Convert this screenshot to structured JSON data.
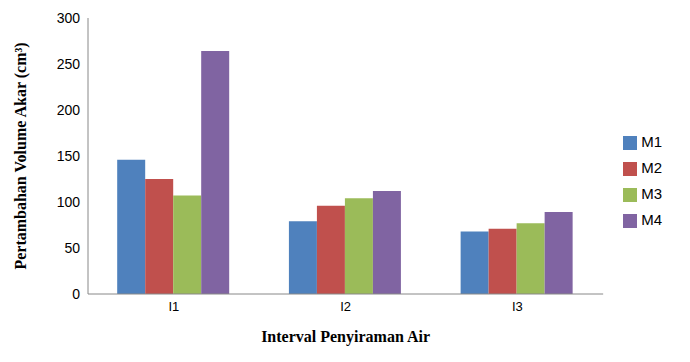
{
  "chart_data": {
    "type": "bar",
    "x_label": "Interval Penyiraman Air",
    "y_label": "Pertambahan Volume Akar (cm³)",
    "categories": [
      "I1",
      "I2",
      "I3"
    ],
    "series": [
      {
        "name": "M1",
        "color": "#4f81bd",
        "values": [
          146,
          79,
          68
        ]
      },
      {
        "name": "M2",
        "color": "#c0504d",
        "values": [
          125,
          96,
          71
        ]
      },
      {
        "name": "M3",
        "color": "#9bbb59",
        "values": [
          107,
          104,
          77
        ]
      },
      {
        "name": "M4",
        "color": "#8064a2",
        "values": [
          264,
          112,
          89
        ]
      }
    ],
    "ylim": [
      0,
      300
    ],
    "yticks": [
      0,
      50,
      100,
      150,
      200,
      250,
      300
    ],
    "grid": false,
    "legend": "right"
  }
}
